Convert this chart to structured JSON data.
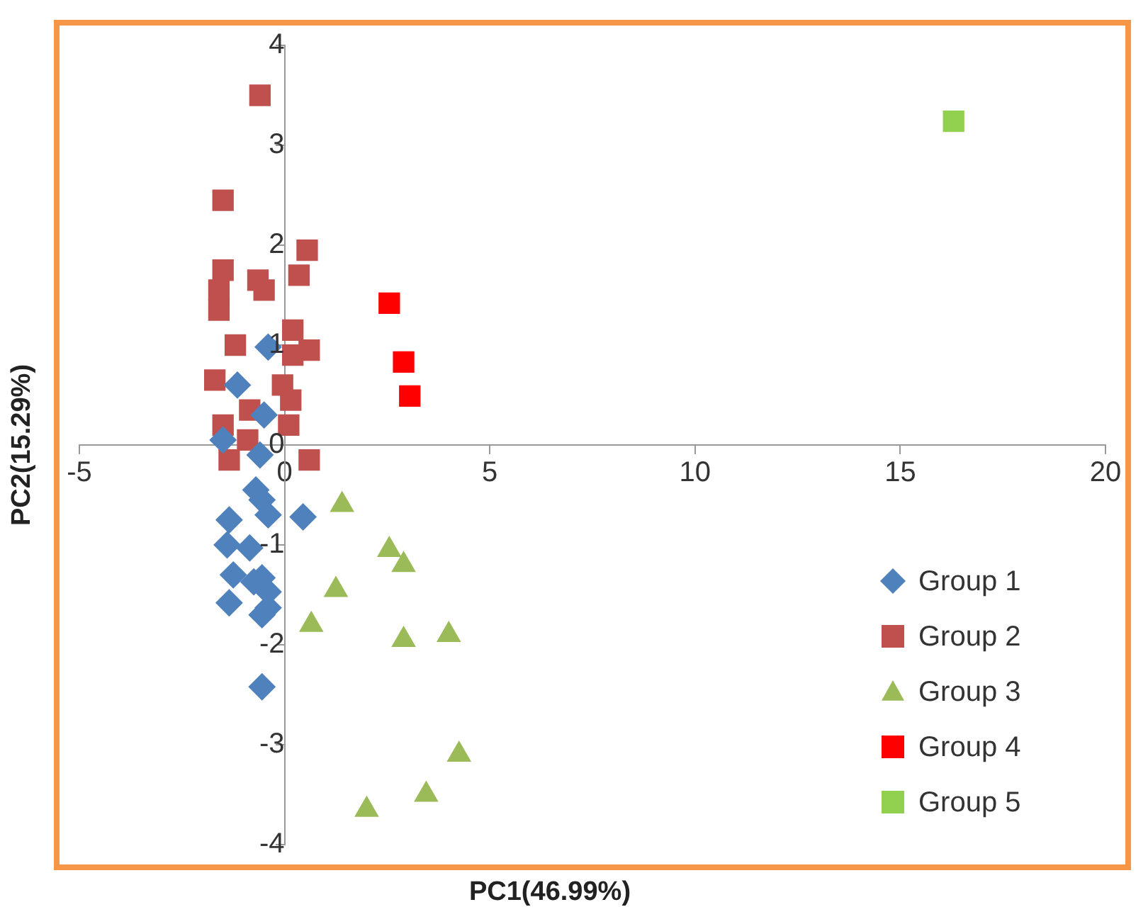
{
  "chart_data": {
    "type": "scatter",
    "xlabel": "PC1(46.99%)",
    "ylabel": "PC2(15.29%)",
    "xlim": [
      -5,
      20
    ],
    "xticks": [
      -5,
      0,
      5,
      10,
      15,
      20
    ],
    "ylim": [
      -4,
      4
    ],
    "yticks": [
      -4,
      -3,
      -2,
      -1,
      0,
      1,
      2,
      3,
      4
    ],
    "grid": false,
    "legend": "bottom right",
    "series": [
      {
        "name": "Group 1",
        "color": "#4f81bd",
        "marker": "diamond",
        "x": [
          -0.4,
          -1.15,
          -0.5,
          -1.5,
          -0.6,
          -0.7,
          -1.35,
          -0.55,
          -0.4,
          0.45,
          -1.4,
          -0.85,
          -0.55,
          -0.75,
          -0.4,
          -1.35,
          -0.4,
          -0.55,
          -0.55,
          -1.25
        ],
        "values": [
          0.98,
          0.6,
          0.3,
          0.05,
          -0.1,
          -0.45,
          -0.75,
          -0.55,
          -0.7,
          -0.72,
          -1.0,
          -1.03,
          -1.33,
          -1.37,
          -1.47,
          -1.58,
          -1.63,
          -1.7,
          -2.42,
          -1.3
        ]
      },
      {
        "name": "Group 2",
        "color": "#c0504d",
        "marker": "square",
        "x": [
          -0.6,
          -1.5,
          0.55,
          -1.5,
          -0.65,
          -0.5,
          0.35,
          -1.6,
          -1.6,
          0.2,
          0.6,
          -1.2,
          0.2,
          -1.7,
          -0.05,
          0.15,
          -1.5,
          -0.85,
          0.1,
          -0.9,
          -1.35,
          0.6
        ],
        "values": [
          3.5,
          2.45,
          1.95,
          1.75,
          1.65,
          1.55,
          1.7,
          1.55,
          1.35,
          1.15,
          0.95,
          1.0,
          0.9,
          0.65,
          0.6,
          0.45,
          0.2,
          0.35,
          0.2,
          0.05,
          -0.15,
          -0.15
        ]
      },
      {
        "name": "Group 3",
        "color": "#9bbb59",
        "marker": "triangle",
        "x": [
          1.4,
          2.55,
          2.9,
          1.25,
          0.65,
          2.9,
          4.0,
          4.25,
          3.45,
          2.0
        ],
        "values": [
          -0.6,
          -1.05,
          -1.2,
          -1.45,
          -1.8,
          -1.95,
          -1.9,
          -3.1,
          -3.5,
          -3.65
        ]
      },
      {
        "name": "Group 4",
        "color": "#ff0000",
        "marker": "square",
        "x": [
          2.55,
          2.9,
          3.05
        ],
        "values": [
          1.42,
          0.83,
          0.49
        ]
      },
      {
        "name": "Group 5",
        "color": "#92d050",
        "marker": "square",
        "x": [
          16.3
        ],
        "values": [
          3.24
        ]
      }
    ]
  }
}
